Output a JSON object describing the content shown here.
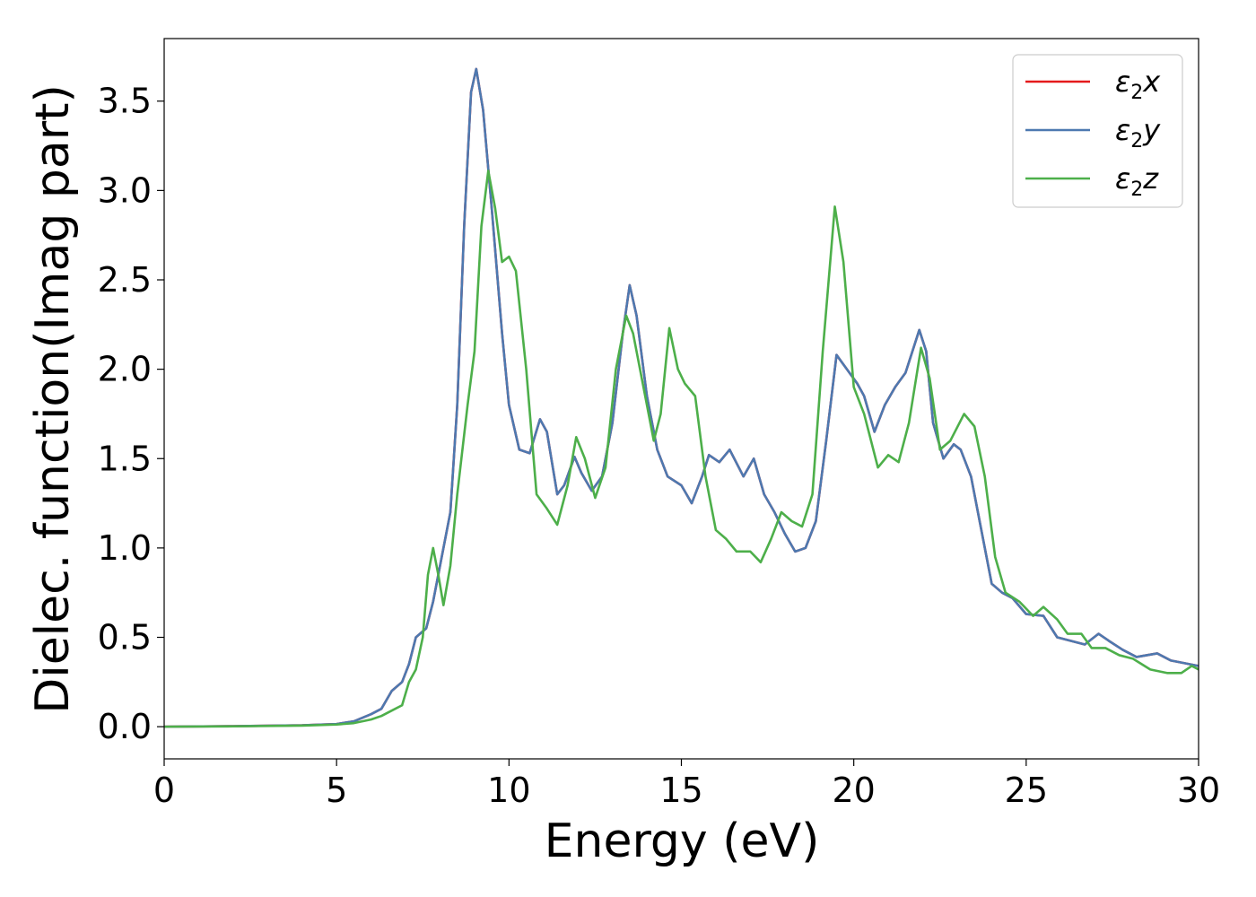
{
  "chart_data": {
    "type": "line",
    "xlabel": "Energy (eV)",
    "ylabel": "Dielec. function(Imag part)",
    "xlim": [
      0,
      30
    ],
    "ylim": [
      -0.18,
      3.85
    ],
    "xticks": [
      0,
      5,
      10,
      15,
      20,
      25,
      30
    ],
    "yticks": [
      0.0,
      0.5,
      1.0,
      1.5,
      2.0,
      2.5,
      3.0,
      3.5
    ],
    "xtick_labels": [
      "0",
      "5",
      "10",
      "15",
      "20",
      "25",
      "30"
    ],
    "ytick_labels": [
      "0.0",
      "0.5",
      "1.0",
      "1.5",
      "2.0",
      "2.5",
      "3.0",
      "3.5"
    ],
    "grid": false,
    "legend_position": "top-right",
    "series": [
      {
        "name": "ε2x",
        "legend_main": "ε",
        "legend_sub": "2",
        "legend_axis": "x",
        "color": "#e41a1c",
        "points": [
          [
            0,
            0.0
          ],
          [
            2,
            0.003
          ],
          [
            4,
            0.008
          ],
          [
            5,
            0.015
          ],
          [
            5.5,
            0.03
          ],
          [
            6,
            0.07
          ],
          [
            6.3,
            0.1
          ],
          [
            6.6,
            0.2
          ],
          [
            6.9,
            0.25
          ],
          [
            7.1,
            0.35
          ],
          [
            7.3,
            0.5
          ],
          [
            7.6,
            0.55
          ],
          [
            7.8,
            0.7
          ],
          [
            8.0,
            0.9
          ],
          [
            8.3,
            1.2
          ],
          [
            8.5,
            1.8
          ],
          [
            8.7,
            2.8
          ],
          [
            8.9,
            3.55
          ],
          [
            9.05,
            3.68
          ],
          [
            9.25,
            3.45
          ],
          [
            9.5,
            2.9
          ],
          [
            9.8,
            2.2
          ],
          [
            10.0,
            1.8
          ],
          [
            10.3,
            1.55
          ],
          [
            10.6,
            1.53
          ],
          [
            10.9,
            1.72
          ],
          [
            11.1,
            1.65
          ],
          [
            11.4,
            1.3
          ],
          [
            11.6,
            1.35
          ],
          [
            11.9,
            1.51
          ],
          [
            12.1,
            1.42
          ],
          [
            12.4,
            1.32
          ],
          [
            12.7,
            1.4
          ],
          [
            13.0,
            1.7
          ],
          [
            13.3,
            2.2
          ],
          [
            13.5,
            2.47
          ],
          [
            13.7,
            2.3
          ],
          [
            14.0,
            1.85
          ],
          [
            14.3,
            1.55
          ],
          [
            14.6,
            1.4
          ],
          [
            15.0,
            1.35
          ],
          [
            15.3,
            1.25
          ],
          [
            15.6,
            1.4
          ],
          [
            15.8,
            1.52
          ],
          [
            16.1,
            1.48
          ],
          [
            16.4,
            1.55
          ],
          [
            16.8,
            1.4
          ],
          [
            17.1,
            1.5
          ],
          [
            17.4,
            1.3
          ],
          [
            17.7,
            1.2
          ],
          [
            18.0,
            1.08
          ],
          [
            18.3,
            0.98
          ],
          [
            18.6,
            1.0
          ],
          [
            18.9,
            1.15
          ],
          [
            19.2,
            1.6
          ],
          [
            19.5,
            2.08
          ],
          [
            19.8,
            2.0
          ],
          [
            20.1,
            1.92
          ],
          [
            20.3,
            1.85
          ],
          [
            20.6,
            1.65
          ],
          [
            20.9,
            1.8
          ],
          [
            21.2,
            1.9
          ],
          [
            21.5,
            1.98
          ],
          [
            21.9,
            2.22
          ],
          [
            22.1,
            2.1
          ],
          [
            22.3,
            1.7
          ],
          [
            22.6,
            1.5
          ],
          [
            22.9,
            1.58
          ],
          [
            23.1,
            1.55
          ],
          [
            23.4,
            1.4
          ],
          [
            23.7,
            1.1
          ],
          [
            24.0,
            0.8
          ],
          [
            24.3,
            0.75
          ],
          [
            24.6,
            0.72
          ],
          [
            25.0,
            0.63
          ],
          [
            25.5,
            0.62
          ],
          [
            25.9,
            0.5
          ],
          [
            26.3,
            0.48
          ],
          [
            26.7,
            0.46
          ],
          [
            27.1,
            0.52
          ],
          [
            27.4,
            0.48
          ],
          [
            27.8,
            0.43
          ],
          [
            28.2,
            0.39
          ],
          [
            28.8,
            0.41
          ],
          [
            29.2,
            0.37
          ],
          [
            30.0,
            0.34
          ]
        ]
      },
      {
        "name": "ε2y",
        "legend_main": "ε",
        "legend_sub": "2",
        "legend_axis": "y",
        "color": "#4d79b0",
        "points": [
          [
            0,
            0.0
          ],
          [
            2,
            0.003
          ],
          [
            4,
            0.008
          ],
          [
            5,
            0.015
          ],
          [
            5.5,
            0.03
          ],
          [
            6,
            0.07
          ],
          [
            6.3,
            0.1
          ],
          [
            6.6,
            0.2
          ],
          [
            6.9,
            0.25
          ],
          [
            7.1,
            0.35
          ],
          [
            7.3,
            0.5
          ],
          [
            7.6,
            0.55
          ],
          [
            7.8,
            0.7
          ],
          [
            8.0,
            0.9
          ],
          [
            8.3,
            1.2
          ],
          [
            8.5,
            1.8
          ],
          [
            8.7,
            2.8
          ],
          [
            8.9,
            3.55
          ],
          [
            9.05,
            3.68
          ],
          [
            9.25,
            3.45
          ],
          [
            9.5,
            2.9
          ],
          [
            9.8,
            2.2
          ],
          [
            10.0,
            1.8
          ],
          [
            10.3,
            1.55
          ],
          [
            10.6,
            1.53
          ],
          [
            10.9,
            1.72
          ],
          [
            11.1,
            1.65
          ],
          [
            11.4,
            1.3
          ],
          [
            11.6,
            1.35
          ],
          [
            11.9,
            1.51
          ],
          [
            12.1,
            1.42
          ],
          [
            12.4,
            1.32
          ],
          [
            12.7,
            1.4
          ],
          [
            13.0,
            1.7
          ],
          [
            13.3,
            2.2
          ],
          [
            13.5,
            2.47
          ],
          [
            13.7,
            2.3
          ],
          [
            14.0,
            1.85
          ],
          [
            14.3,
            1.55
          ],
          [
            14.6,
            1.4
          ],
          [
            15.0,
            1.35
          ],
          [
            15.3,
            1.25
          ],
          [
            15.6,
            1.4
          ],
          [
            15.8,
            1.52
          ],
          [
            16.1,
            1.48
          ],
          [
            16.4,
            1.55
          ],
          [
            16.8,
            1.4
          ],
          [
            17.1,
            1.5
          ],
          [
            17.4,
            1.3
          ],
          [
            17.7,
            1.2
          ],
          [
            18.0,
            1.08
          ],
          [
            18.3,
            0.98
          ],
          [
            18.6,
            1.0
          ],
          [
            18.9,
            1.15
          ],
          [
            19.2,
            1.6
          ],
          [
            19.5,
            2.08
          ],
          [
            19.8,
            2.0
          ],
          [
            20.1,
            1.92
          ],
          [
            20.3,
            1.85
          ],
          [
            20.6,
            1.65
          ],
          [
            20.9,
            1.8
          ],
          [
            21.2,
            1.9
          ],
          [
            21.5,
            1.98
          ],
          [
            21.9,
            2.22
          ],
          [
            22.1,
            2.1
          ],
          [
            22.3,
            1.7
          ],
          [
            22.6,
            1.5
          ],
          [
            22.9,
            1.58
          ],
          [
            23.1,
            1.55
          ],
          [
            23.4,
            1.4
          ],
          [
            23.7,
            1.1
          ],
          [
            24.0,
            0.8
          ],
          [
            24.3,
            0.75
          ],
          [
            24.6,
            0.72
          ],
          [
            25.0,
            0.63
          ],
          [
            25.5,
            0.62
          ],
          [
            25.9,
            0.5
          ],
          [
            26.3,
            0.48
          ],
          [
            26.7,
            0.46
          ],
          [
            27.1,
            0.52
          ],
          [
            27.4,
            0.48
          ],
          [
            27.8,
            0.43
          ],
          [
            28.2,
            0.39
          ],
          [
            28.8,
            0.41
          ],
          [
            29.2,
            0.37
          ],
          [
            30.0,
            0.34
          ]
        ]
      },
      {
        "name": "ε2z",
        "legend_main": "ε",
        "legend_sub": "2",
        "legend_axis": "z",
        "color": "#4daf4a",
        "points": [
          [
            0,
            0.0
          ],
          [
            2,
            0.002
          ],
          [
            4,
            0.006
          ],
          [
            5,
            0.012
          ],
          [
            5.5,
            0.02
          ],
          [
            6,
            0.04
          ],
          [
            6.3,
            0.06
          ],
          [
            6.6,
            0.09
          ],
          [
            6.9,
            0.12
          ],
          [
            7.1,
            0.25
          ],
          [
            7.3,
            0.32
          ],
          [
            7.5,
            0.5
          ],
          [
            7.65,
            0.85
          ],
          [
            7.8,
            1.0
          ],
          [
            7.95,
            0.85
          ],
          [
            8.1,
            0.68
          ],
          [
            8.3,
            0.9
          ],
          [
            8.5,
            1.3
          ],
          [
            8.8,
            1.8
          ],
          [
            9.0,
            2.1
          ],
          [
            9.2,
            2.8
          ],
          [
            9.4,
            3.11
          ],
          [
            9.6,
            2.9
          ],
          [
            9.8,
            2.6
          ],
          [
            10.0,
            2.63
          ],
          [
            10.2,
            2.55
          ],
          [
            10.5,
            2.0
          ],
          [
            10.8,
            1.3
          ],
          [
            11.1,
            1.22
          ],
          [
            11.4,
            1.13
          ],
          [
            11.7,
            1.35
          ],
          [
            11.95,
            1.62
          ],
          [
            12.2,
            1.5
          ],
          [
            12.5,
            1.28
          ],
          [
            12.8,
            1.45
          ],
          [
            13.1,
            2.0
          ],
          [
            13.4,
            2.3
          ],
          [
            13.6,
            2.2
          ],
          [
            13.9,
            1.9
          ],
          [
            14.2,
            1.6
          ],
          [
            14.4,
            1.75
          ],
          [
            14.65,
            2.23
          ],
          [
            14.9,
            2.0
          ],
          [
            15.1,
            1.92
          ],
          [
            15.4,
            1.85
          ],
          [
            15.7,
            1.4
          ],
          [
            16.0,
            1.1
          ],
          [
            16.3,
            1.05
          ],
          [
            16.6,
            0.98
          ],
          [
            17.0,
            0.98
          ],
          [
            17.3,
            0.92
          ],
          [
            17.6,
            1.05
          ],
          [
            17.9,
            1.2
          ],
          [
            18.2,
            1.15
          ],
          [
            18.5,
            1.12
          ],
          [
            18.8,
            1.3
          ],
          [
            19.1,
            2.1
          ],
          [
            19.45,
            2.91
          ],
          [
            19.7,
            2.6
          ],
          [
            20.0,
            1.9
          ],
          [
            20.3,
            1.75
          ],
          [
            20.7,
            1.45
          ],
          [
            21.0,
            1.52
          ],
          [
            21.3,
            1.48
          ],
          [
            21.6,
            1.7
          ],
          [
            21.95,
            2.12
          ],
          [
            22.2,
            1.95
          ],
          [
            22.5,
            1.55
          ],
          [
            22.8,
            1.6
          ],
          [
            23.2,
            1.75
          ],
          [
            23.5,
            1.68
          ],
          [
            23.8,
            1.4
          ],
          [
            24.1,
            0.95
          ],
          [
            24.4,
            0.75
          ],
          [
            24.8,
            0.7
          ],
          [
            25.2,
            0.62
          ],
          [
            25.5,
            0.67
          ],
          [
            25.9,
            0.6
          ],
          [
            26.2,
            0.52
          ],
          [
            26.6,
            0.52
          ],
          [
            26.9,
            0.44
          ],
          [
            27.3,
            0.44
          ],
          [
            27.7,
            0.4
          ],
          [
            28.1,
            0.38
          ],
          [
            28.6,
            0.32
          ],
          [
            29.1,
            0.3
          ],
          [
            29.5,
            0.3
          ],
          [
            29.8,
            0.34
          ],
          [
            30.0,
            0.32
          ]
        ]
      }
    ]
  }
}
